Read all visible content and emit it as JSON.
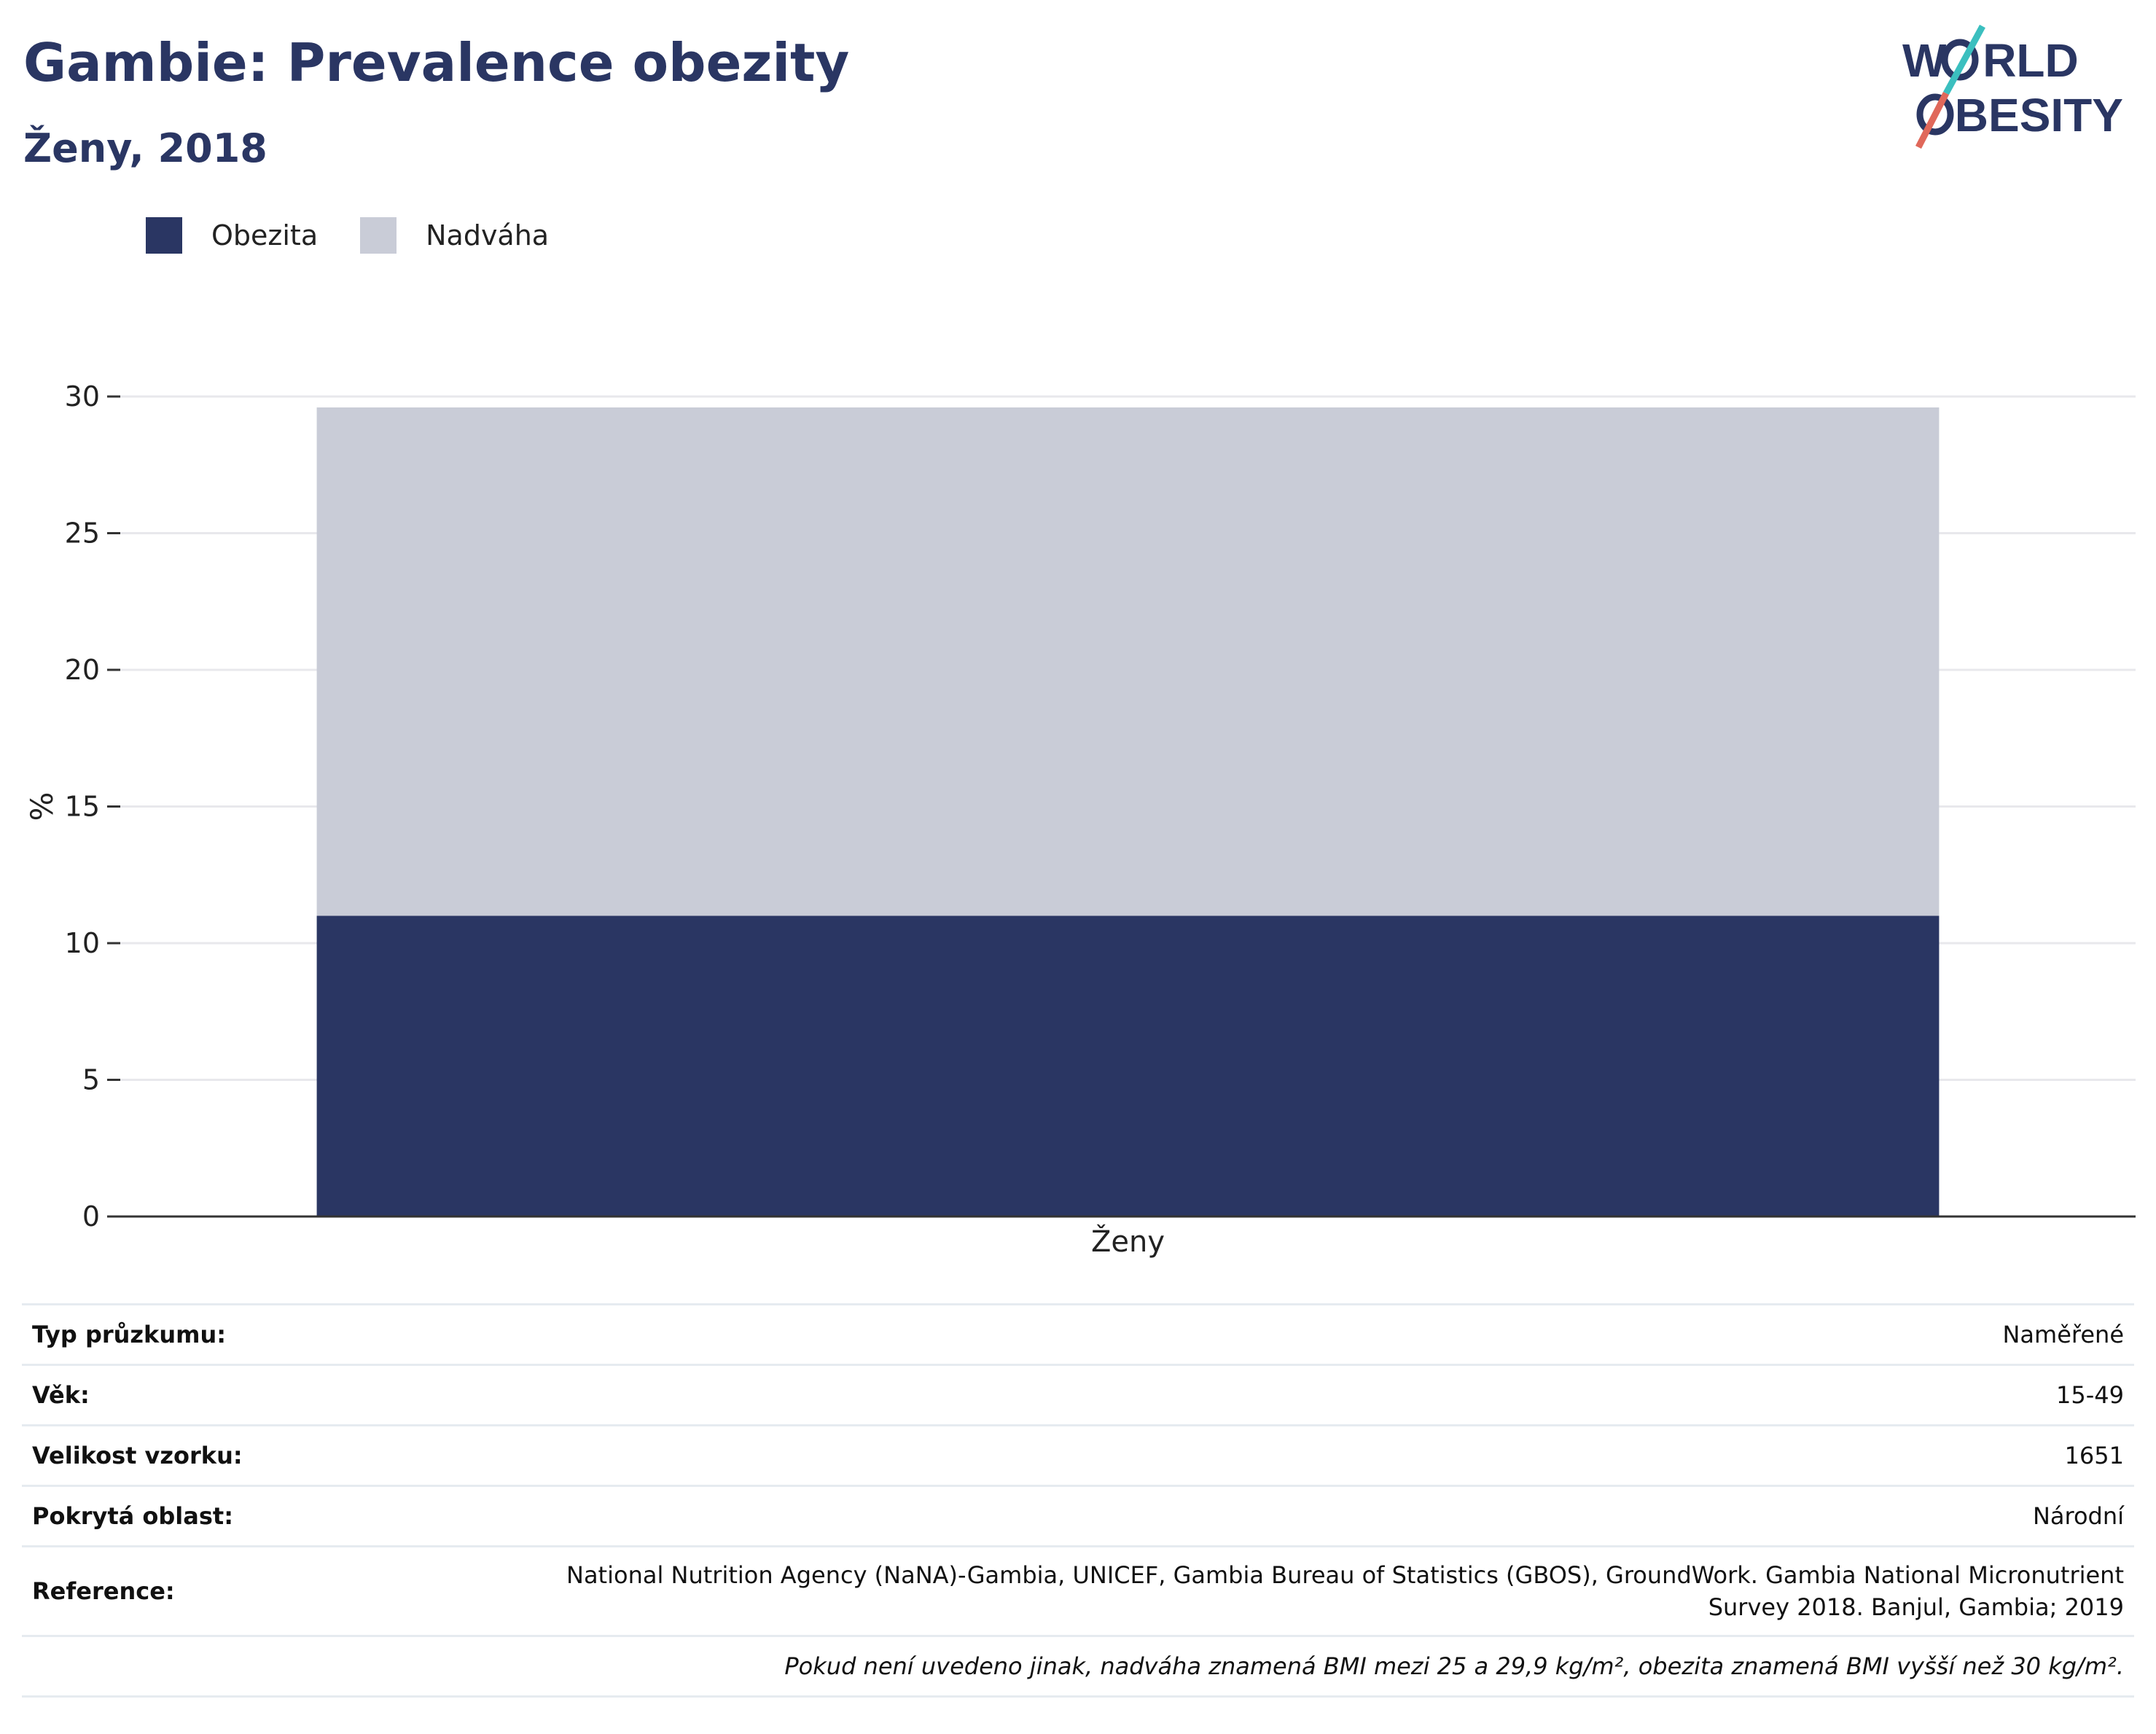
{
  "header": {
    "title": "Gambie: Prevalence obezity",
    "subtitle": "Ženy, 2018"
  },
  "logo": {
    "line1": "WORLD",
    "line2": "OBESITY",
    "colors": {
      "navy": "#2a3663",
      "teal": "#3bbfbf",
      "coral": "#e0685a"
    }
  },
  "legend": [
    {
      "label": "Obezita",
      "color": "#2a3663"
    },
    {
      "label": "Nadváha",
      "color": "#c9ccd7"
    }
  ],
  "chart_data": {
    "type": "bar",
    "stacked": true,
    "categories": [
      "Ženy"
    ],
    "series": [
      {
        "name": "Obezita",
        "values": [
          11.0
        ],
        "color": "#2a3663"
      },
      {
        "name": "Nadváha",
        "values": [
          18.6
        ],
        "color": "#c9ccd7"
      }
    ],
    "xlabel": "",
    "ylabel": "%",
    "ylim": [
      0,
      30
    ],
    "yticks": [
      0,
      5,
      10,
      15,
      20,
      25,
      30
    ],
    "grid": true,
    "legend_position": "top-left"
  },
  "info": {
    "survey_type": {
      "label": "Typ průzkumu:",
      "value": "Naměřené"
    },
    "age": {
      "label": "Věk:",
      "value": "15-49"
    },
    "sample_size": {
      "label": "Velikost vzorku:",
      "value": "1651"
    },
    "area": {
      "label": "Pokrytá oblast:",
      "value": "Národní"
    },
    "reference": {
      "label": "Reference:",
      "value_line1": "National Nutrition Agency (NaNA)-Gambia, UNICEF, Gambia Bureau of Statistics (GBOS), GroundWork. Gambia National Micronutrient",
      "value_line2": "Survey 2018. Banjul, Gambia; 2019"
    },
    "note": "Pokud není uvedeno jinak, nadváha znamená BMI mezi 25 a 29,9 kg/m², obezita znamená BMI vyšší než 30 kg/m²."
  }
}
